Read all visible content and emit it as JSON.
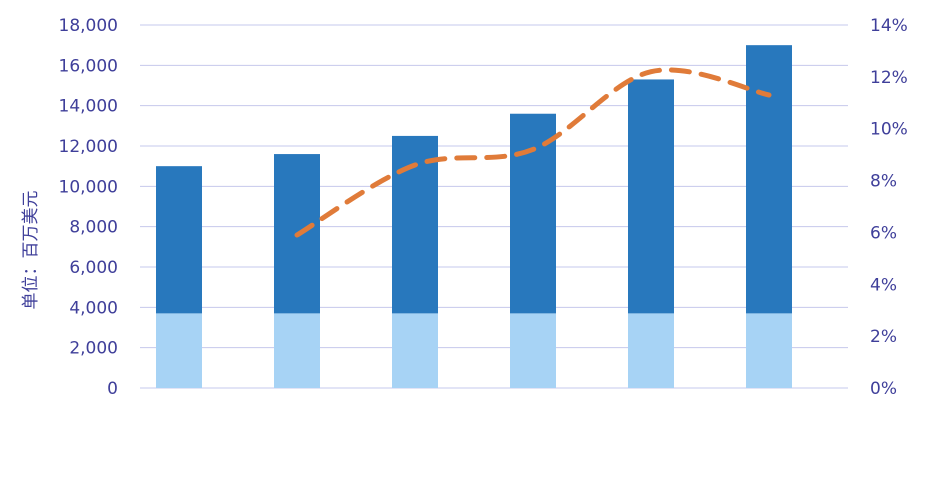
{
  "chart_data": {
    "type": "bar",
    "y_label": "单位：百万美元",
    "left_axis": {
      "ylim": [
        0,
        18000
      ],
      "ticks": [
        "0",
        "2,000",
        "4,000",
        "6,000",
        "8,000",
        "10,000",
        "12,000",
        "14,000",
        "16,000",
        "18,000"
      ]
    },
    "right_axis": {
      "ylim": [
        0,
        14
      ],
      "ticks": [
        "0%",
        "2%",
        "4%",
        "6%",
        "8%",
        "10%",
        "12%",
        "14%"
      ]
    },
    "categories": [
      "",
      "",
      "",
      "",
      "",
      ""
    ],
    "series": [
      {
        "type": "bar",
        "values": [
          11000,
          11600,
          12500,
          13600,
          15300,
          17000
        ]
      },
      {
        "type": "line",
        "axis": "right",
        "values": [
          null,
          5.9,
          8.6,
          9.2,
          12.2,
          11.3
        ]
      }
    ],
    "grid": true,
    "colors": {
      "bar": "#2878bd",
      "bar_light": "#a7d3f5",
      "line": "#e07b39",
      "grid": "#c6c8ec",
      "text": "#3f3f9a"
    }
  }
}
